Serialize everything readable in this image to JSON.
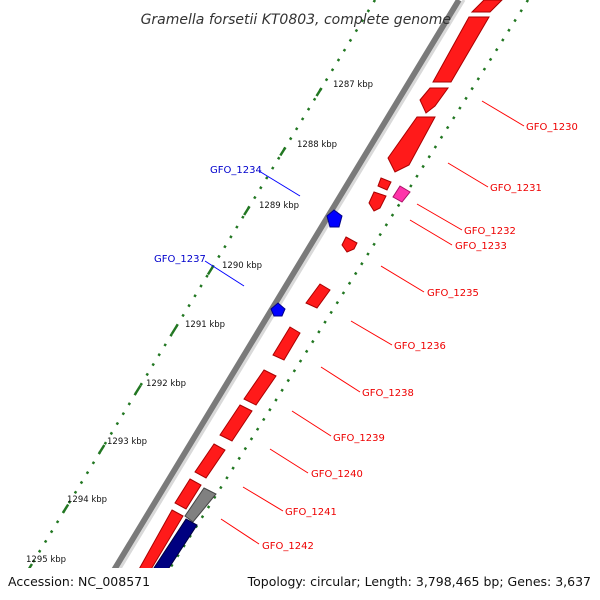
{
  "title": "Gramella forsetii KT0803, complete genome",
  "accession": "Accession: NC_008571",
  "summary": "Topology: circular; Length: 3,798,465 bp; Genes: 3,637",
  "colors": {
    "forward_gene": "#ff0000",
    "forward_gene_dark": "#bb0000",
    "reverse_gene": "#0000ee",
    "backbone_dark": "#808080",
    "backbone_light": "#d8d8d8",
    "gc_skew_dots": "#227722",
    "forward_label_line": "#ff0000",
    "reverse_label_line": "#0000ff",
    "magenta_feature": "#ff33aa",
    "navy_feature": "#000080",
    "gray_feature": "#777777"
  },
  "ruler": {
    "unit": "kbp",
    "ticks": [
      "1287 kbp",
      "1288 kbp",
      "1289 kbp",
      "1290 kbp",
      "1291 kbp",
      "1292 kbp",
      "1293 kbp",
      "1294 kbp",
      "1295 kbp"
    ]
  },
  "forward_genes": [
    "GFO_1230",
    "GFO_1231",
    "GFO_1232",
    "GFO_1233",
    "GFO_1235",
    "GFO_1236",
    "GFO_1238",
    "GFO_1239",
    "GFO_1240",
    "GFO_1241",
    "GFO_1242"
  ],
  "reverse_genes": [
    "GFO_1234",
    "GFO_1237"
  ]
}
